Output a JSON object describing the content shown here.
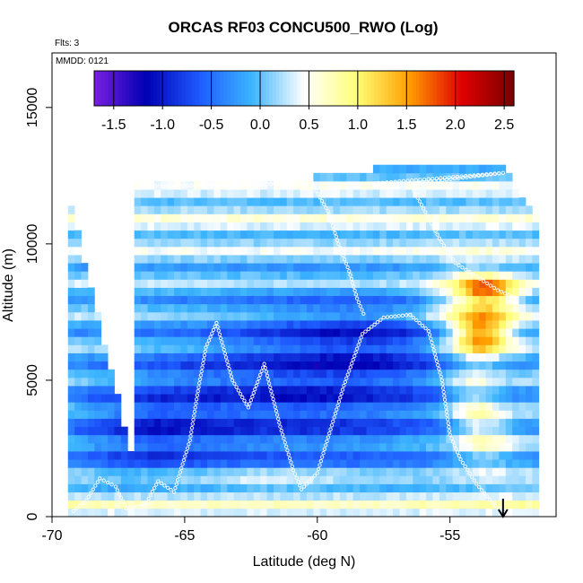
{
  "chart_data": {
    "type": "heatmap",
    "title": "ORCAS RF03 CONCU500_RWO (Log)",
    "annotations": [
      "Flts: 3",
      "MMDD: 0121"
    ],
    "xlabel": "Latitude (deg N)",
    "ylabel": "Altitude (m)",
    "xlim": [
      -70,
      -51
    ],
    "ylim": [
      0,
      17000
    ],
    "x_ticks": [
      -70,
      -65,
      -60,
      -55
    ],
    "x_tick_labels": [
      "-70",
      "-65",
      "-60",
      "-55"
    ],
    "y_ticks": [
      0,
      5000,
      10000,
      15000
    ],
    "y_tick_labels": [
      "0",
      "5000",
      "10000",
      "15000"
    ],
    "colorbar": {
      "range": [
        -1.7,
        2.6
      ],
      "ticks": [
        -1.5,
        -1.0,
        -0.5,
        0.0,
        0.5,
        1.0,
        1.5,
        2.0,
        2.5
      ],
      "tick_labels": [
        "-1.5",
        "-1.0",
        "-0.5",
        "0.0",
        "0.5",
        "1.0",
        "1.5",
        "2.0",
        "2.5"
      ],
      "colors": [
        "#7a1fe0",
        "#0000b4",
        "#1e5aff",
        "#3cb4ff",
        "#ffffff",
        "#ffff78",
        "#ffa000",
        "#e00000",
        "#780000"
      ]
    },
    "arrow_marker_x": -53,
    "flight_track": [
      {
        "lat": -69.2,
        "alt": 200
      },
      {
        "lat": -68.7,
        "alt": 600
      },
      {
        "lat": -68.2,
        "alt": 1400
      },
      {
        "lat": -67.6,
        "alt": 1100
      },
      {
        "lat": -67.2,
        "alt": 300
      },
      {
        "lat": -66.5,
        "alt": 400
      },
      {
        "lat": -66.0,
        "alt": 1300
      },
      {
        "lat": -65.4,
        "alt": 900
      },
      {
        "lat": -64.8,
        "alt": 2800
      },
      {
        "lat": -64.5,
        "alt": 4600
      },
      {
        "lat": -64.2,
        "alt": 6200
      },
      {
        "lat": -63.8,
        "alt": 7100
      },
      {
        "lat": -63.2,
        "alt": 5000
      },
      {
        "lat": -62.6,
        "alt": 4000
      },
      {
        "lat": -62.0,
        "alt": 5600
      },
      {
        "lat": -61.4,
        "alt": 3300
      },
      {
        "lat": -60.9,
        "alt": 1700
      },
      {
        "lat": -60.6,
        "alt": 1000
      },
      {
        "lat": -60.0,
        "alt": 1600
      },
      {
        "lat": -59.5,
        "alt": 3200
      },
      {
        "lat": -59.0,
        "alt": 4800
      },
      {
        "lat": -58.3,
        "alt": 6700
      },
      {
        "lat": -57.5,
        "alt": 7300
      },
      {
        "lat": -56.5,
        "alt": 7400
      },
      {
        "lat": -55.8,
        "alt": 6800
      },
      {
        "lat": -55.3,
        "alt": 5000
      },
      {
        "lat": -55.0,
        "alt": 3000
      },
      {
        "lat": -54.6,
        "alt": 2100
      },
      {
        "lat": -54.0,
        "alt": 1200
      },
      {
        "lat": -53.3,
        "alt": 400
      },
      {
        "lat": -53.0,
        "alt": 200
      }
    ],
    "flight_track_2": [
      {
        "lat": -66.7,
        "alt": 12100
      },
      {
        "lat": -64.0,
        "alt": 12150
      },
      {
        "lat": -61.0,
        "alt": 12200
      },
      {
        "lat": -60.2,
        "alt": 12200
      },
      {
        "lat": -59.6,
        "alt": 11200
      },
      {
        "lat": -59.2,
        "alt": 10000
      },
      {
        "lat": -58.8,
        "alt": 9000
      },
      {
        "lat": -58.5,
        "alt": 8000
      },
      {
        "lat": -58.2,
        "alt": 7300
      }
    ],
    "flight_track_3": [
      {
        "lat": -58.0,
        "alt": 12200
      },
      {
        "lat": -55.5,
        "alt": 12400
      },
      {
        "lat": -53.0,
        "alt": 12600
      },
      {
        "lat": -56.5,
        "alt": 12200
      },
      {
        "lat": -56.0,
        "alt": 11300
      },
      {
        "lat": -55.4,
        "alt": 10200
      },
      {
        "lat": -54.8,
        "alt": 9300
      },
      {
        "lat": -54.0,
        "alt": 8800
      },
      {
        "lat": -53.2,
        "alt": 8300
      },
      {
        "lat": -52.5,
        "alt": 8000
      }
    ]
  }
}
